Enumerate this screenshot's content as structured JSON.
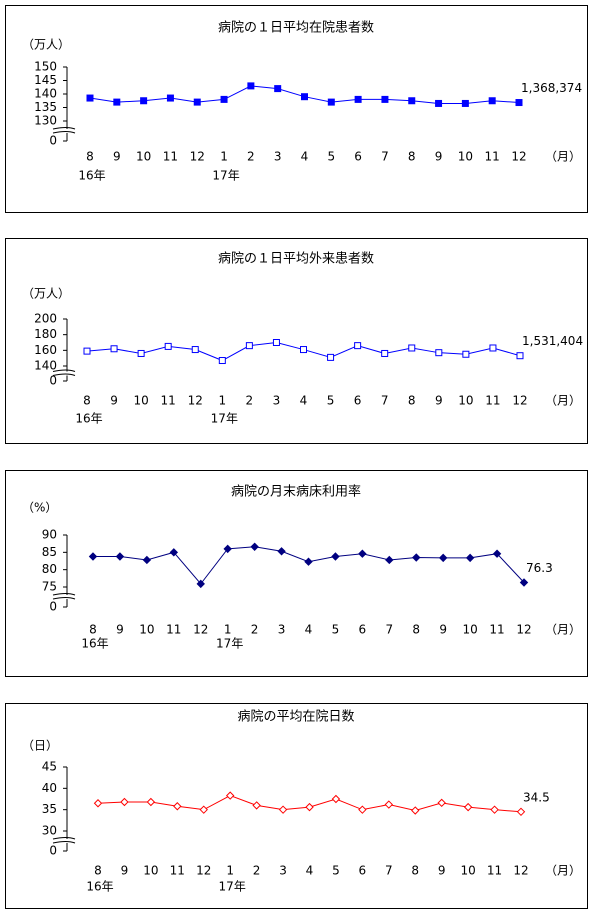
{
  "chart_data": [
    {
      "type": "line",
      "title": "病院の１日平均在院患者数",
      "y_unit": "（万人）",
      "x_unit": "（月）",
      "categories": [
        "8",
        "9",
        "10",
        "11",
        "12",
        "1",
        "2",
        "3",
        "4",
        "5",
        "6",
        "7",
        "8",
        "9",
        "10",
        "11",
        "12"
      ],
      "year_labels": [
        "16年",
        null,
        null,
        null,
        null,
        "17年",
        null,
        null,
        null,
        null,
        null,
        null,
        null,
        null,
        null,
        null,
        null
      ],
      "color": "#0000ff",
      "marker": "square-filled",
      "values": [
        138.5,
        137,
        137.5,
        138.5,
        137,
        138,
        143,
        142,
        139,
        137,
        138,
        138,
        137.5,
        136.5,
        136.5,
        137.5,
        136.8374
      ],
      "value_labels": [
        null,
        null,
        null,
        null,
        null,
        null,
        null,
        null,
        null,
        null,
        null,
        null,
        null,
        null,
        null,
        null,
        "1,368,374"
      ],
      "ylim": [
        130,
        150
      ],
      "yticks": [
        0,
        130,
        135,
        140,
        145,
        150
      ],
      "axis_break": true
    },
    {
      "type": "line",
      "title": "病院の１日平均外来患者数",
      "y_unit": "（万人）",
      "x_unit": "（月）",
      "categories": [
        "8",
        "9",
        "10",
        "11",
        "12",
        "1",
        "2",
        "3",
        "4",
        "5",
        "6",
        "7",
        "8",
        "9",
        "10",
        "11",
        "12"
      ],
      "year_labels": [
        "16年",
        null,
        null,
        null,
        null,
        "17年",
        null,
        null,
        null,
        null,
        null,
        null,
        null,
        null,
        null,
        null,
        null
      ],
      "color": "#0000ff",
      "marker": "square-open",
      "values": [
        159,
        162,
        156,
        165,
        161,
        147,
        166,
        170,
        161,
        151,
        166,
        156,
        163,
        157,
        155,
        163,
        153.1404
      ],
      "value_labels": [
        null,
        null,
        null,
        null,
        null,
        null,
        null,
        null,
        null,
        null,
        null,
        null,
        null,
        null,
        null,
        null,
        "1,531,404"
      ],
      "ylim": [
        140,
        200
      ],
      "yticks": [
        0,
        140,
        160,
        180,
        200
      ],
      "axis_break": true
    },
    {
      "type": "line",
      "title": "病院の月末病床利用率",
      "y_unit": "（%）",
      "x_unit": "（月）",
      "categories": [
        "8",
        "9",
        "10",
        "11",
        "12",
        "1",
        "2",
        "3",
        "4",
        "5",
        "6",
        "7",
        "8",
        "9",
        "10",
        "11",
        "12"
      ],
      "year_labels": [
        "16年",
        null,
        null,
        null,
        null,
        "17年",
        null,
        null,
        null,
        null,
        null,
        null,
        null,
        null,
        null,
        null,
        null
      ],
      "color": "#000080",
      "marker": "diamond-filled",
      "values": [
        83.8,
        83.8,
        82.8,
        85,
        75.9,
        86,
        86.6,
        85.3,
        82.3,
        83.8,
        84.6,
        82.8,
        83.5,
        83.4,
        83.4,
        84.6,
        76.3
      ],
      "value_labels": [
        null,
        null,
        null,
        null,
        null,
        null,
        null,
        null,
        null,
        null,
        null,
        null,
        null,
        null,
        null,
        null,
        "76.3"
      ],
      "ylim": [
        75,
        90
      ],
      "yticks": [
        0,
        75,
        80,
        85,
        90
      ],
      "axis_break": true
    },
    {
      "type": "line",
      "title": "病院の平均在院日数",
      "y_unit": "（日）",
      "x_unit": "（月）",
      "categories": [
        "8",
        "9",
        "10",
        "11",
        "12",
        "1",
        "2",
        "3",
        "4",
        "5",
        "6",
        "7",
        "8",
        "9",
        "10",
        "11",
        "12"
      ],
      "year_labels": [
        "16年",
        null,
        null,
        null,
        null,
        "17年",
        null,
        null,
        null,
        null,
        null,
        null,
        null,
        null,
        null,
        null,
        null
      ],
      "color": "#ff0000",
      "marker": "diamond-open",
      "values": [
        36.5,
        36.8,
        36.8,
        35.8,
        35,
        38.3,
        36,
        35,
        35.6,
        37.5,
        35,
        36.2,
        34.8,
        36.6,
        35.6,
        35,
        34.5
      ],
      "value_labels": [
        null,
        null,
        null,
        null,
        null,
        null,
        null,
        null,
        null,
        null,
        null,
        null,
        null,
        null,
        null,
        null,
        "34.5"
      ],
      "ylim": [
        30,
        45
      ],
      "yticks": [
        0,
        30,
        35,
        40,
        45
      ],
      "axis_break": true
    }
  ]
}
